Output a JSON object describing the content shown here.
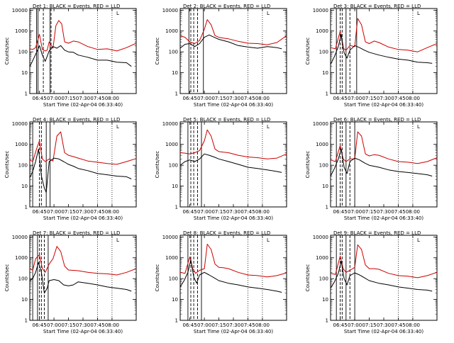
{
  "chart_data": [
    {
      "type": "line",
      "title": "Det 1: BLACK = Events, RED = LLD",
      "xlabel": "Start Time (02-Apr-04 06:33:40)",
      "ylabel": "Counts/sec",
      "x_ticks": [
        "06:45",
        "07:00",
        "07:15",
        "07:30",
        "07:45",
        "08:00"
      ],
      "y_ticks": [
        "1",
        "10",
        "100",
        "1000",
        "10000"
      ],
      "x_range_min": [
        30,
        140
      ],
      "ylim": [
        1,
        12000
      ],
      "y_scale": "log",
      "mark": "L",
      "series": [
        {
          "color": "#cc0000",
          "x": [
            30,
            33,
            36,
            40,
            43,
            46,
            48,
            50,
            54,
            57,
            60,
            63,
            66,
            70,
            75,
            80,
            90,
            100,
            110,
            120,
            130,
            140
          ],
          "values": [
            140,
            130,
            160,
            700,
            130,
            110,
            120,
            300,
            150,
            1800,
            3200,
            2200,
            300,
            260,
            330,
            300,
            180,
            130,
            140,
            110,
            160,
            260
          ]
        },
        {
          "color": "#000000",
          "x": [
            30,
            32,
            35,
            38,
            40,
            43,
            46,
            50,
            54,
            58,
            62,
            66,
            70,
            75,
            80,
            90,
            100,
            110,
            120,
            130,
            135
          ],
          "values": [
            20,
            30,
            60,
            120,
            200,
            70,
            35,
            110,
            180,
            150,
            200,
            120,
            100,
            95,
            70,
            55,
            40,
            40,
            32,
            30,
            20
          ]
        }
      ]
    },
    {
      "type": "line",
      "title": "Det 2: BLACK = Events, RED = LLD",
      "xlabel": "Start Time (02-Apr-04 06:33:40)",
      "ylabel": "Counts/sec",
      "x_ticks": [
        "06:45",
        "07:00",
        "07:15",
        "07:30",
        "07:45",
        "08:00"
      ],
      "y_ticks": [
        "1",
        "10",
        "100",
        "1000",
        "10000"
      ],
      "x_range_min": [
        30,
        140
      ],
      "ylim": [
        1,
        12000
      ],
      "y_scale": "log",
      "mark": "L",
      "series": [
        {
          "color": "#cc0000",
          "x": [
            30,
            35,
            40,
            45,
            50,
            55,
            58,
            62,
            66,
            70,
            75,
            80,
            90,
            100,
            110,
            120,
            130,
            140
          ],
          "values": [
            600,
            500,
            300,
            250,
            350,
            1200,
            3500,
            2000,
            600,
            500,
            450,
            420,
            320,
            260,
            250,
            220,
            280,
            600
          ]
        },
        {
          "color": "#000000",
          "x": [
            30,
            35,
            40,
            45,
            50,
            55,
            60,
            65,
            70,
            80,
            90,
            100,
            110,
            120,
            130,
            135
          ],
          "values": [
            150,
            230,
            250,
            180,
            250,
            500,
            650,
            500,
            400,
            300,
            200,
            170,
            150,
            180,
            160,
            140
          ]
        }
      ]
    },
    {
      "type": "line",
      "title": "Det 3: BLACK = Events, RED = LLD",
      "xlabel": "Start Time (02-Apr-04 06:33:40)",
      "ylabel": "Counts/sec",
      "x_ticks": [
        "06:45",
        "07:00",
        "07:15",
        "07:30",
        "07:45",
        "08:00"
      ],
      "y_ticks": [
        "1",
        "10",
        "100",
        "1000",
        "10000"
      ],
      "x_range_min": [
        30,
        140
      ],
      "ylim": [
        1,
        12000
      ],
      "y_scale": "log",
      "mark": "L",
      "series": [
        {
          "color": "#cc0000",
          "x": [
            30,
            35,
            40,
            43,
            46,
            50,
            55,
            58,
            62,
            66,
            70,
            75,
            80,
            90,
            100,
            110,
            120,
            130,
            140
          ],
          "values": [
            160,
            140,
            1000,
            150,
            120,
            200,
            180,
            4000,
            2000,
            300,
            250,
            330,
            280,
            170,
            130,
            120,
            100,
            160,
            250
          ]
        },
        {
          "color": "#000000",
          "x": [
            30,
            34,
            38,
            41,
            44,
            47,
            50,
            55,
            60,
            65,
            70,
            80,
            90,
            100,
            110,
            120,
            130,
            135
          ],
          "values": [
            25,
            60,
            180,
            700,
            90,
            50,
            120,
            200,
            160,
            120,
            95,
            70,
            55,
            45,
            40,
            32,
            30,
            28
          ]
        }
      ]
    },
    {
      "type": "line",
      "title": "Det 4: BLACK = Events, RED = LLD",
      "xlabel": "Start Time (02-Apr-04 06:33:40)",
      "ylabel": "Counts/sec",
      "x_ticks": [
        "06:45",
        "07:00",
        "07:15",
        "07:30",
        "07:45",
        "08:00"
      ],
      "y_ticks": [
        "1",
        "10",
        "100",
        "1000",
        "10000"
      ],
      "x_range_min": [
        30,
        140
      ],
      "ylim": [
        1,
        12000
      ],
      "y_scale": "log",
      "mark": "L",
      "series": [
        {
          "color": "#cc0000",
          "x": [
            30,
            33,
            37,
            40,
            43,
            46,
            50,
            54,
            58,
            62,
            66,
            70,
            75,
            80,
            90,
            100,
            110,
            120,
            130,
            140
          ],
          "values": [
            180,
            150,
            600,
            1500,
            200,
            150,
            200,
            160,
            2500,
            4000,
            400,
            300,
            260,
            220,
            160,
            140,
            120,
            110,
            150,
            210
          ]
        },
        {
          "color": "#000000",
          "x": [
            30,
            33,
            36,
            39,
            42,
            45,
            47,
            50,
            55,
            60,
            65,
            70,
            75,
            80,
            90,
            100,
            110,
            120,
            130,
            135
          ],
          "values": [
            25,
            50,
            150,
            600,
            30,
            8,
            5,
            150,
            220,
            200,
            150,
            110,
            90,
            70,
            55,
            40,
            35,
            30,
            28,
            22
          ]
        }
      ]
    },
    {
      "type": "line",
      "title": "Det 5: BLACK = Events, RED = LLD",
      "xlabel": "Start Time (02-Apr-04 06:33:40)",
      "ylabel": "Counts/sec",
      "x_ticks": [
        "06:45",
        "07:00",
        "07:15",
        "07:30",
        "07:45",
        "08:00"
      ],
      "y_ticks": [
        "1",
        "10",
        "100",
        "1000",
        "10000"
      ],
      "x_range_min": [
        30,
        140
      ],
      "ylim": [
        1,
        12000
      ],
      "y_scale": "log",
      "mark": "L",
      "series": [
        {
          "color": "#cc0000",
          "x": [
            30,
            35,
            40,
            45,
            50,
            55,
            58,
            62,
            66,
            70,
            75,
            80,
            90,
            100,
            110,
            120,
            130,
            140
          ],
          "values": [
            400,
            380,
            350,
            400,
            500,
            1500,
            5000,
            2500,
            600,
            450,
            420,
            400,
            300,
            250,
            230,
            200,
            220,
            350
          ]
        },
        {
          "color": "#000000",
          "x": [
            30,
            35,
            40,
            45,
            50,
            55,
            60,
            65,
            70,
            80,
            90,
            100,
            110,
            120,
            130,
            135
          ],
          "values": [
            100,
            150,
            180,
            150,
            200,
            350,
            300,
            250,
            200,
            150,
            110,
            80,
            70,
            60,
            50,
            45
          ]
        }
      ]
    },
    {
      "type": "line",
      "title": "Det 6: BLACK = Events, RED = LLD",
      "xlabel": "Start Time (02-Apr-04 06:33:40)",
      "ylabel": "Counts/sec",
      "x_ticks": [
        "06:45",
        "07:00",
        "07:15",
        "07:30",
        "07:45",
        "08:00"
      ],
      "y_ticks": [
        "1",
        "10",
        "100",
        "1000",
        "10000"
      ],
      "x_range_min": [
        30,
        140
      ],
      "ylim": [
        1,
        12000
      ],
      "y_scale": "log",
      "mark": "L",
      "series": [
        {
          "color": "#cc0000",
          "x": [
            30,
            35,
            40,
            43,
            46,
            50,
            55,
            58,
            62,
            66,
            70,
            75,
            80,
            90,
            100,
            110,
            120,
            130,
            140
          ],
          "values": [
            180,
            150,
            900,
            200,
            150,
            200,
            200,
            4000,
            2500,
            350,
            280,
            320,
            300,
            200,
            150,
            140,
            120,
            150,
            230
          ]
        },
        {
          "color": "#000000",
          "x": [
            30,
            34,
            38,
            41,
            44,
            47,
            50,
            55,
            60,
            65,
            70,
            80,
            90,
            100,
            110,
            120,
            130,
            135
          ],
          "values": [
            30,
            70,
            200,
            600,
            80,
            40,
            150,
            220,
            180,
            130,
            100,
            80,
            60,
            50,
            45,
            40,
            35,
            30
          ]
        }
      ]
    },
    {
      "type": "line",
      "title": "Det 7: BLACK = Events, RED = LLD",
      "xlabel": "Start Time (02-Apr-04 06:33:40)",
      "ylabel": "Counts/sec",
      "x_ticks": [
        "06:45",
        "07:00",
        "07:15",
        "07:30",
        "07:45",
        "08:00"
      ],
      "y_ticks": [
        "1",
        "10",
        "100",
        "1000",
        "10000"
      ],
      "x_range_min": [
        30,
        140
      ],
      "ylim": [
        1,
        12000
      ],
      "y_scale": "log",
      "mark": "L",
      "series": [
        {
          "color": "#cc0000",
          "x": [
            30,
            33,
            36,
            40,
            43,
            46,
            50,
            54,
            58,
            62,
            66,
            70,
            75,
            80,
            90,
            100,
            110,
            120,
            130,
            140
          ],
          "values": [
            300,
            250,
            900,
            1400,
            300,
            200,
            500,
            900,
            3500,
            2000,
            400,
            260,
            250,
            240,
            200,
            180,
            170,
            150,
            200,
            300
          ]
        },
        {
          "color": "#000000",
          "x": [
            30,
            33,
            36,
            39,
            42,
            45,
            48,
            50,
            55,
            60,
            65,
            70,
            75,
            80,
            90,
            100,
            110,
            120,
            130,
            135
          ],
          "values": [
            80,
            100,
            200,
            600,
            200,
            20,
            35,
            80,
            90,
            80,
            50,
            45,
            50,
            70,
            60,
            50,
            40,
            35,
            30,
            25
          ]
        }
      ]
    },
    {
      "type": "line",
      "title": "Det 8: BLACK = Events, RED = LLD",
      "xlabel": "Start Time (02-Apr-04 06:33:40)",
      "ylabel": "Counts/sec",
      "x_ticks": [
        "06:45",
        "07:00",
        "07:15",
        "07:30",
        "07:45",
        "08:00"
      ],
      "y_ticks": [
        "1",
        "10",
        "100",
        "1000",
        "10000"
      ],
      "x_range_min": [
        30,
        140
      ],
      "ylim": [
        1,
        12000
      ],
      "y_scale": "log",
      "mark": "L",
      "series": [
        {
          "color": "#cc0000",
          "x": [
            30,
            35,
            40,
            43,
            46,
            50,
            55,
            58,
            62,
            66,
            70,
            75,
            80,
            90,
            100,
            110,
            120,
            130,
            140
          ],
          "values": [
            200,
            180,
            1100,
            300,
            180,
            250,
            300,
            4500,
            2500,
            500,
            350,
            330,
            300,
            200,
            150,
            140,
            120,
            140,
            190
          ]
        },
        {
          "color": "#000000",
          "x": [
            30,
            34,
            38,
            41,
            44,
            47,
            50,
            55,
            60,
            65,
            70,
            80,
            90,
            100,
            110,
            120,
            130,
            135
          ],
          "values": [
            40,
            80,
            200,
            800,
            120,
            60,
            150,
            200,
            150,
            110,
            80,
            60,
            50,
            40,
            35,
            30,
            25,
            22
          ]
        }
      ]
    },
    {
      "type": "line",
      "title": "Det 9: BLACK = Events, RED = LLD",
      "xlabel": "Start Time (02-Apr-04 06:33:40)",
      "ylabel": "Counts/sec",
      "x_ticks": [
        "06:45",
        "07:00",
        "07:15",
        "07:30",
        "07:45",
        "08:00"
      ],
      "y_ticks": [
        "1",
        "10",
        "100",
        "1000",
        "10000"
      ],
      "x_range_min": [
        30,
        140
      ],
      "ylim": [
        1,
        12000
      ],
      "y_scale": "log",
      "mark": "L",
      "series": [
        {
          "color": "#cc0000",
          "x": [
            30,
            35,
            40,
            43,
            46,
            50,
            55,
            58,
            62,
            66,
            70,
            75,
            80,
            90,
            100,
            110,
            120,
            130,
            140
          ],
          "values": [
            180,
            160,
            1200,
            300,
            200,
            250,
            350,
            4200,
            2500,
            450,
            300,
            300,
            280,
            180,
            140,
            130,
            110,
            140,
            200
          ]
        },
        {
          "color": "#000000",
          "x": [
            30,
            34,
            38,
            41,
            44,
            47,
            50,
            55,
            60,
            65,
            70,
            80,
            90,
            100,
            110,
            120,
            130,
            135
          ],
          "values": [
            35,
            70,
            180,
            700,
            100,
            50,
            140,
            190,
            150,
            110,
            80,
            60,
            50,
            40,
            35,
            30,
            28,
            25
          ]
        }
      ]
    }
  ]
}
